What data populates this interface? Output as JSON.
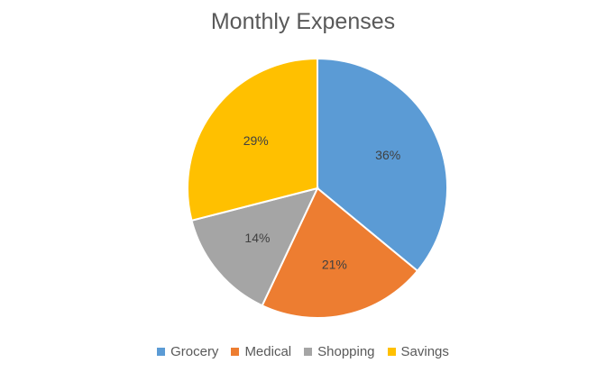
{
  "chart_data": {
    "type": "pie",
    "title": "Monthly Expenses",
    "categories": [
      "Grocery",
      "Medical",
      "Shopping",
      "Savings"
    ],
    "values": [
      36,
      21,
      14,
      29
    ],
    "labels": [
      "36%",
      "21%",
      "14%",
      "29%"
    ],
    "colors": [
      "#5B9BD5",
      "#ED7D31",
      "#A5A5A5",
      "#FFC000"
    ],
    "legend_position": "bottom"
  }
}
